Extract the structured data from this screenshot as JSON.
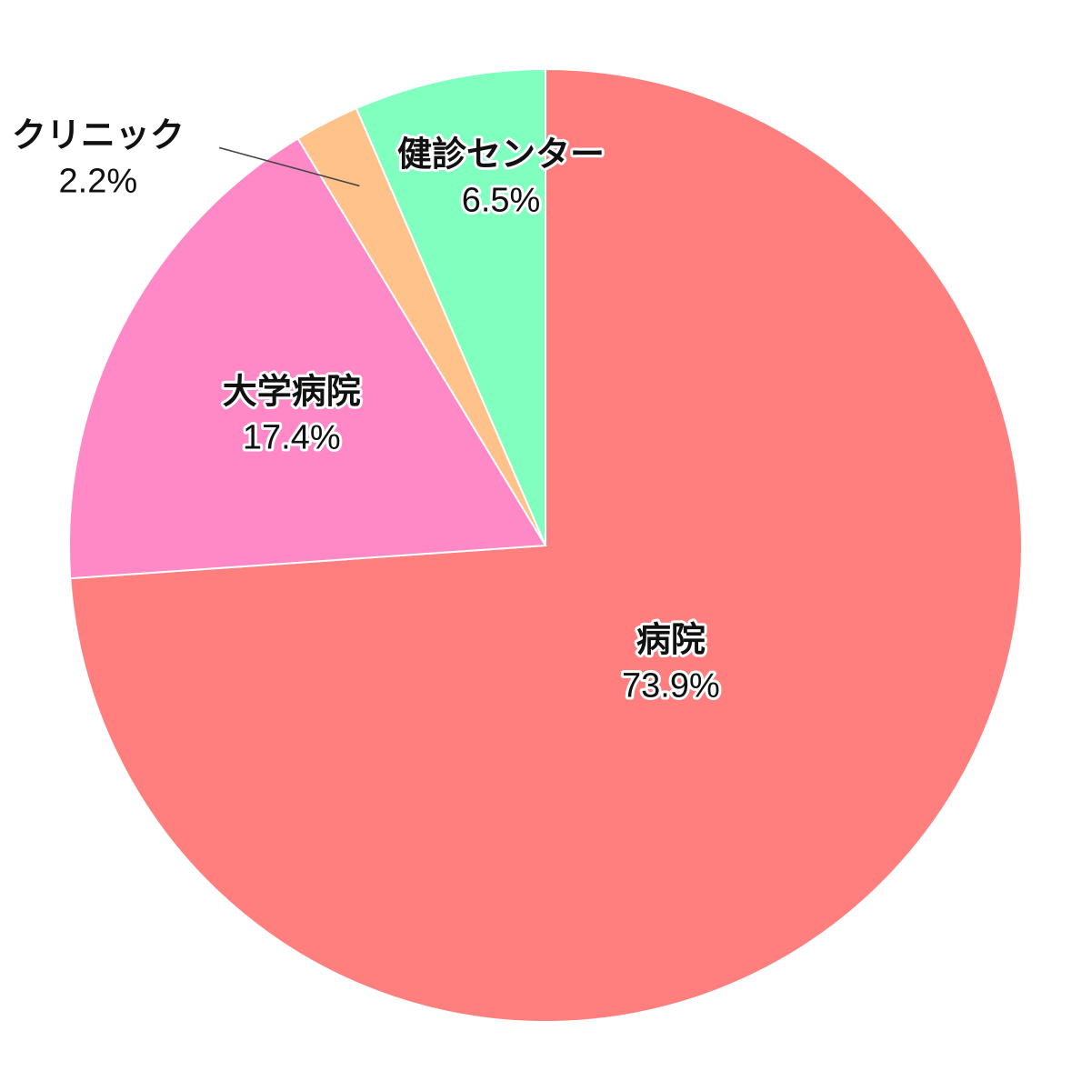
{
  "chart_data": {
    "type": "pie",
    "title": "",
    "start_angle_deg": 90,
    "direction": "clockwise",
    "unit": "%",
    "slices": [
      {
        "label": "病院",
        "value": 73.9,
        "value_label": "73.9%",
        "color": "#ff7f7f",
        "label_outside": false
      },
      {
        "label": "大学病院",
        "value": 17.4,
        "value_label": "17.4%",
        "color": "#ff88c6",
        "label_outside": false
      },
      {
        "label": "クリニック",
        "value": 2.2,
        "value_label": "2.2%",
        "color": "#ffc28a",
        "label_outside": true
      },
      {
        "label": "健診センター",
        "value": 6.5,
        "value_label": "6.5%",
        "color": "#80ffbf",
        "label_outside": false
      }
    ]
  }
}
